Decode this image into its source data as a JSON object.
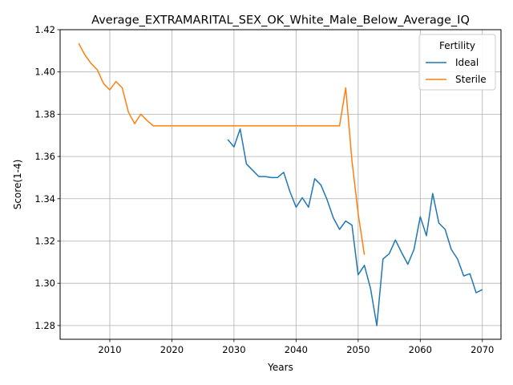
{
  "chart_data": {
    "type": "line",
    "title": "Average_EXTRAMARITAL_SEX_OK_White_Male_Below_Average_IQ",
    "xlabel": "Years",
    "ylabel": "Score(1-4)",
    "xlim": [
      2002,
      2073
    ],
    "ylim": [
      1.2735,
      1.42
    ],
    "xticks": [
      2010,
      2020,
      2030,
      2040,
      2050,
      2060,
      2070
    ],
    "yticks": [
      1.28,
      1.3,
      1.32,
      1.34,
      1.36,
      1.38,
      1.4,
      1.42
    ],
    "xtick_labels": [
      "2010",
      "2020",
      "2030",
      "2040",
      "2050",
      "2060",
      "2070"
    ],
    "ytick_labels": [
      "1.28",
      "1.30",
      "1.32",
      "1.34",
      "1.36",
      "1.38",
      "1.40",
      "1.42"
    ],
    "grid": true,
    "legend": {
      "title": "Fertility",
      "position": "top-right"
    },
    "series": [
      {
        "name": "Ideal",
        "color": "#1f77b4",
        "x": [
          2029,
          2030,
          2031,
          2032,
          2033,
          2034,
          2035,
          2036,
          2037,
          2038,
          2039,
          2040,
          2041,
          2042,
          2043,
          2044,
          2045,
          2046,
          2047,
          2048,
          2049,
          2050,
          2051,
          2052,
          2053,
          2054,
          2055,
          2056,
          2057,
          2058,
          2059,
          2060,
          2061,
          2062,
          2063,
          2064,
          2065,
          2066,
          2067,
          2068,
          2069,
          2070
        ],
        "values": [
          1.368,
          1.3645,
          1.373,
          1.3565,
          1.3535,
          1.3505,
          1.3505,
          1.35,
          1.35,
          1.3525,
          1.3435,
          1.336,
          1.3405,
          1.336,
          1.3495,
          1.3465,
          1.3395,
          1.331,
          1.3255,
          1.3295,
          1.3275,
          1.304,
          1.3085,
          1.2975,
          1.28,
          1.3115,
          1.314,
          1.3205,
          1.3145,
          1.309,
          1.316,
          1.3315,
          1.3225,
          1.3425,
          1.3285,
          1.3255,
          1.316,
          1.3115,
          1.3035,
          1.3045,
          1.2955,
          1.297
        ]
      },
      {
        "name": "Sterile",
        "color": "#ff7f0e",
        "x": [
          2005,
          2006,
          2007,
          2008,
          2009,
          2010,
          2011,
          2012,
          2013,
          2014,
          2015,
          2016,
          2017,
          2018,
          2019,
          2020,
          2021,
          2022,
          2023,
          2024,
          2025,
          2026,
          2027,
          2028,
          2029,
          2030,
          2031,
          2032,
          2033,
          2034,
          2035,
          2036,
          2037,
          2038,
          2039,
          2040,
          2041,
          2042,
          2043,
          2044,
          2045,
          2046,
          2047,
          2048,
          2049,
          2050,
          2051
        ],
        "values": [
          1.4135,
          1.408,
          1.404,
          1.401,
          1.3945,
          1.3915,
          1.3955,
          1.3925,
          1.381,
          1.3755,
          1.38,
          1.377,
          1.3745,
          1.3745,
          1.3745,
          1.3745,
          1.3745,
          1.3745,
          1.3745,
          1.3745,
          1.3745,
          1.3745,
          1.3745,
          1.3745,
          1.3745,
          1.3745,
          1.3745,
          1.3745,
          1.3745,
          1.3745,
          1.3745,
          1.3745,
          1.3745,
          1.3745,
          1.3745,
          1.3745,
          1.3745,
          1.3745,
          1.3745,
          1.3745,
          1.3745,
          1.3745,
          1.3745,
          1.3925,
          1.358,
          1.333,
          1.3135
        ]
      }
    ]
  }
}
